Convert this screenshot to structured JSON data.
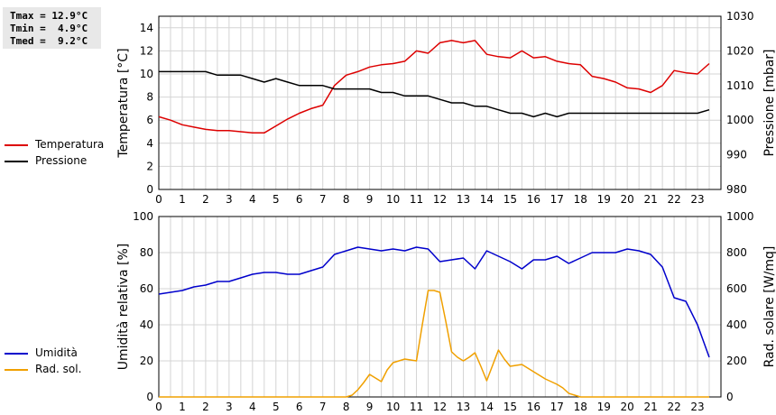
{
  "stats": {
    "tmax": "Tmax = 12.9°C",
    "tmin": "Tmin =  4.9°C",
    "tmed": "Tmed =  9.2°C"
  },
  "chart_data": [
    {
      "type": "line",
      "xlabel": "",
      "xlim": [
        0,
        24
      ],
      "x_ticks": [
        "0",
        "1",
        "2",
        "3",
        "4",
        "5",
        "6",
        "7",
        "8",
        "9",
        "10",
        "11",
        "12",
        "13",
        "14",
        "15",
        "16",
        "17",
        "18",
        "19",
        "20",
        "21",
        "22",
        "23"
      ],
      "ylabel_left": "Temperatura [°C]",
      "ylim_left": [
        0,
        15
      ],
      "y_ticks_left": [
        "0",
        "2",
        "4",
        "6",
        "8",
        "10",
        "12",
        "14"
      ],
      "ylabel_right": "Pressione [mbar]",
      "ylim_right": [
        980,
        1030
      ],
      "y_ticks_right": [
        "980",
        "990",
        "1000",
        "1010",
        "1020",
        "1030"
      ],
      "grid": true,
      "legend_position": "left",
      "series": [
        {
          "name": "Temperatura",
          "axis": "left",
          "color": "#dd0000",
          "x": [
            0,
            0.5,
            1,
            1.5,
            2,
            2.5,
            3,
            3.5,
            4,
            4.5,
            5,
            5.5,
            6,
            6.5,
            7,
            7.5,
            8,
            8.5,
            9,
            9.5,
            10,
            10.5,
            11,
            11.5,
            12,
            12.5,
            13,
            13.5,
            14,
            14.5,
            15,
            15.5,
            16,
            16.5,
            17,
            17.5,
            18,
            18.5,
            19,
            19.5,
            20,
            20.5,
            21,
            21.5,
            22,
            22.5,
            23,
            23.5
          ],
          "values": [
            6.3,
            6.0,
            5.6,
            5.4,
            5.2,
            5.1,
            5.1,
            5.0,
            4.9,
            4.9,
            5.5,
            6.1,
            6.6,
            7.0,
            7.3,
            9.0,
            9.9,
            10.2,
            10.6,
            10.8,
            10.9,
            11.1,
            12.0,
            11.8,
            12.7,
            12.9,
            12.7,
            12.9,
            11.7,
            11.5,
            11.4,
            12.0,
            11.4,
            11.5,
            11.1,
            10.9,
            10.8,
            9.8,
            9.6,
            9.3,
            8.8,
            8.7,
            8.4,
            9.0,
            10.3,
            10.1,
            10.0,
            10.9
          ]
        },
        {
          "name": "Pressione",
          "axis": "right",
          "color": "#000000",
          "x": [
            0,
            0.5,
            1,
            1.5,
            2,
            2.5,
            3,
            3.5,
            4,
            4.5,
            5,
            5.5,
            6,
            6.5,
            7,
            7.5,
            8,
            8.5,
            9,
            9.5,
            10,
            10.5,
            11,
            11.5,
            12,
            12.5,
            13,
            13.5,
            14,
            14.5,
            15,
            15.5,
            16,
            16.5,
            17,
            17.5,
            18,
            18.5,
            19,
            19.5,
            20,
            20.5,
            21,
            21.5,
            22,
            22.5,
            23,
            23.5
          ],
          "values": [
            1014,
            1014,
            1014,
            1014,
            1014,
            1013,
            1013,
            1013,
            1012,
            1011,
            1012,
            1011,
            1010,
            1010,
            1010,
            1009,
            1009,
            1009,
            1009,
            1008,
            1008,
            1007,
            1007,
            1007,
            1006,
            1005,
            1005,
            1004,
            1004,
            1003,
            1002,
            1002,
            1001,
            1002,
            1001,
            1002,
            1002,
            1002,
            1002,
            1002,
            1002,
            1002,
            1002,
            1002,
            1002,
            1002,
            1002,
            1003
          ]
        }
      ]
    },
    {
      "type": "line",
      "xlabel": "",
      "xlim": [
        0,
        24
      ],
      "x_ticks": [
        "0",
        "1",
        "2",
        "3",
        "4",
        "5",
        "6",
        "7",
        "8",
        "9",
        "10",
        "11",
        "12",
        "13",
        "14",
        "15",
        "16",
        "17",
        "18",
        "19",
        "20",
        "21",
        "22",
        "23"
      ],
      "ylabel_left": "Umidità relativa [%]",
      "ylim_left": [
        0,
        100
      ],
      "y_ticks_left": [
        "0",
        "20",
        "40",
        "60",
        "80",
        "100"
      ],
      "ylabel_right": "Rad. solare [W/mq]",
      "ylim_right": [
        0,
        1000
      ],
      "y_ticks_right": [
        "0",
        "200",
        "400",
        "600",
        "800",
        "1000"
      ],
      "grid": true,
      "legend_position": "left",
      "series": [
        {
          "name": "Umidità",
          "axis": "left",
          "color": "#0000cc",
          "x": [
            0,
            0.5,
            1,
            1.5,
            2,
            2.5,
            3,
            3.5,
            4,
            4.5,
            5,
            5.5,
            6,
            6.5,
            7,
            7.5,
            8,
            8.5,
            9,
            9.5,
            10,
            10.5,
            11,
            11.5,
            12,
            12.5,
            13,
            13.5,
            14,
            14.5,
            15,
            15.5,
            16,
            16.5,
            17,
            17.5,
            18,
            18.5,
            19,
            19.5,
            20,
            20.5,
            21,
            21.5,
            22,
            22.5,
            23,
            23.5
          ],
          "values": [
            57,
            58,
            59,
            61,
            62,
            64,
            64,
            66,
            68,
            69,
            69,
            68,
            68,
            70,
            72,
            79,
            81,
            83,
            82,
            81,
            82,
            81,
            83,
            82,
            75,
            76,
            77,
            71,
            81,
            78,
            75,
            71,
            76,
            76,
            78,
            74,
            77,
            80,
            80,
            80,
            82,
            81,
            79,
            72,
            55,
            53,
            40,
            22
          ]
        },
        {
          "name": "Rad. sol.",
          "axis": "right",
          "color": "#f0a000",
          "x": [
            0,
            0.5,
            1,
            1.5,
            2,
            2.5,
            3,
            3.5,
            4,
            4.5,
            5,
            5.5,
            6,
            6.5,
            7,
            7.5,
            8,
            8.25,
            8.5,
            8.75,
            9,
            9.25,
            9.5,
            9.75,
            10,
            10.5,
            11,
            11.25,
            11.5,
            11.75,
            12,
            12.25,
            12.5,
            12.75,
            13,
            13.25,
            13.5,
            13.75,
            14,
            14.25,
            14.5,
            14.75,
            15,
            15.5,
            16,
            16.5,
            17,
            17.25,
            17.5,
            17.75,
            18,
            18.5,
            19,
            19.5,
            20,
            20.5,
            21,
            21.5,
            22,
            22.5,
            23,
            23.5
          ],
          "values": [
            0,
            0,
            0,
            0,
            0,
            0,
            0,
            0,
            0,
            0,
            0,
            0,
            0,
            0,
            0,
            0,
            0,
            10,
            40,
            80,
            125,
            105,
            85,
            150,
            190,
            210,
            200,
            400,
            590,
            590,
            580,
            420,
            250,
            220,
            200,
            220,
            245,
            170,
            90,
            175,
            260,
            210,
            170,
            180,
            140,
            100,
            70,
            50,
            20,
            10,
            0,
            0,
            0,
            0,
            0,
            0,
            0,
            0,
            0,
            0,
            0,
            0
          ]
        }
      ]
    }
  ]
}
